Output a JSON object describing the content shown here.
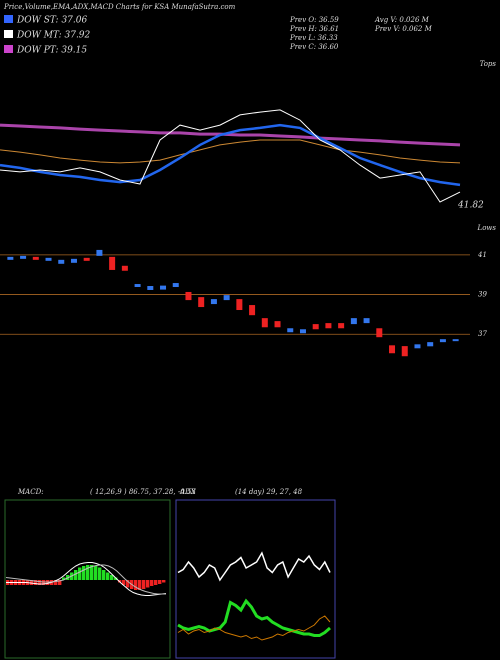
{
  "header": {
    "title": "Price,Volume,EMA,ADX,MACD Charts for KSA MunafaSutra.com"
  },
  "legend": [
    {
      "label": "DOW ST: 37.06",
      "color": "#3366ff"
    },
    {
      "label": "DOW MT: 37.92",
      "color": "#ffffff"
    },
    {
      "label": "DOW PT: 39.15",
      "color": "#cc44cc"
    }
  ],
  "stats": [
    "Prev  O: 36.59",
    "Prev  H: 36.61",
    "Prev  L: 36.33",
    "Prev  C: 36.60",
    "Avg V: 0.026  M",
    "Prev  V: 0.062  M"
  ],
  "chart_data": [
    {
      "type": "line",
      "top_label": "Tops",
      "bottom_label": "Lows",
      "last_label": "41.82",
      "ylim": [
        41,
        46
      ],
      "series": [
        {
          "color": "#aa44aa",
          "width": 3,
          "values": [
            43.9,
            43.87,
            43.84,
            43.81,
            43.77,
            43.74,
            43.71,
            43.68,
            43.65,
            43.65,
            43.61,
            43.61,
            43.58,
            43.58,
            43.55,
            43.52,
            43.48,
            43.45,
            43.42,
            43.39,
            43.35,
            43.32,
            43.29,
            43.26
          ]
        },
        {
          "color": "#cc8833",
          "width": 1,
          "values": [
            43.1,
            43.03,
            42.94,
            42.84,
            42.77,
            42.71,
            42.68,
            42.71,
            42.77,
            42.94,
            43.1,
            43.26,
            43.35,
            43.42,
            43.42,
            43.42,
            43.26,
            43.1,
            43.03,
            42.94,
            42.84,
            42.77,
            42.71,
            42.68
          ]
        },
        {
          "color": "#2266ee",
          "width": 2.5,
          "values": [
            42.61,
            42.52,
            42.39,
            42.29,
            42.23,
            42.13,
            42.06,
            42.13,
            42.45,
            42.84,
            43.26,
            43.58,
            43.74,
            43.81,
            43.9,
            43.81,
            43.48,
            43.16,
            42.84,
            42.61,
            42.39,
            42.19,
            42.06,
            41.97
          ]
        },
        {
          "color": "#ffffff",
          "width": 1,
          "values": [
            42.45,
            42.39,
            42.45,
            42.39,
            42.52,
            42.39,
            42.13,
            42.0,
            43.42,
            43.9,
            43.74,
            43.9,
            44.23,
            44.32,
            44.39,
            44.06,
            43.42,
            43.1,
            42.61,
            42.19,
            42.29,
            42.39,
            41.42,
            41.74
          ]
        }
      ]
    },
    {
      "type": "candlestick",
      "up_color": "#3377ee",
      "down_color": "#ee2222",
      "grid": true,
      "ylim": [
        35.7,
        41.75
      ],
      "yticks": [
        37,
        39,
        41
      ],
      "open": [
        40.75,
        40.8,
        40.9,
        40.7,
        40.55,
        40.6,
        40.85,
        40.95,
        40.9,
        40.45,
        39.38,
        39.23,
        39.25,
        39.38,
        39.13,
        38.87,
        38.52,
        38.72,
        38.77,
        38.47,
        37.81,
        37.66,
        37.1,
        37.05,
        37.51,
        37.56,
        37.56,
        37.51,
        37.56,
        37.3,
        36.44,
        36.4,
        36.29,
        36.39,
        36.6,
        36.65
      ],
      "close": [
        40.9,
        40.95,
        40.75,
        40.85,
        40.75,
        40.8,
        40.7,
        41.25,
        40.24,
        40.2,
        39.53,
        39.43,
        39.45,
        39.58,
        38.72,
        38.37,
        38.77,
        38.97,
        38.22,
        37.96,
        37.35,
        37.35,
        37.3,
        37.25,
        37.25,
        37.3,
        37.3,
        37.81,
        37.81,
        36.85,
        36.04,
        35.89,
        36.49,
        36.6,
        36.75,
        36.75
      ]
    },
    {
      "type": "macd",
      "title": "MACD:",
      "params": "( 12,26,9 ) 86.75,  37.28,  -0.53",
      "ylim": [
        -1.5,
        1.5
      ],
      "histogram": [
        -0.1,
        -0.1,
        -0.1,
        -0.1,
        -0.1,
        -0.1,
        -0.1,
        -0.1,
        -0.1,
        -0.1,
        -0.1,
        -0.1,
        -0.1,
        -0.1,
        0.05,
        0.1,
        0.15,
        0.2,
        0.25,
        0.28,
        0.3,
        0.3,
        0.28,
        0.25,
        0.2,
        0.15,
        0.1,
        0.05,
        -0.05,
        -0.1,
        -0.15,
        -0.18,
        -0.2,
        -0.2,
        -0.18,
        -0.15,
        -0.12,
        -0.1,
        -0.08,
        -0.05
      ],
      "up_color": "#22dd22",
      "down_color": "#ee2222",
      "series": [
        {
          "color": "#ffffff",
          "values": [
            -0.05,
            -0.05,
            -0.05,
            -0.05,
            -0.05,
            -0.05,
            -0.06,
            -0.07,
            -0.08,
            -0.08,
            -0.07,
            -0.05,
            -0.02,
            0.02,
            0.08,
            0.15,
            0.22,
            0.28,
            0.32,
            0.34,
            0.35,
            0.35,
            0.33,
            0.3,
            0.25,
            0.18,
            0.1,
            0.02,
            -0.06,
            -0.13,
            -0.2,
            -0.25,
            -0.28,
            -0.3,
            -0.31,
            -0.31,
            -0.3,
            -0.29,
            -0.28,
            -0.27
          ]
        },
        {
          "color": "#bbbbbb",
          "values": [
            0.05,
            0.04,
            0.03,
            0.02,
            0.01,
            0,
            -0.01,
            -0.02,
            -0.03,
            -0.04,
            -0.04,
            -0.04,
            -0.03,
            -0.02,
            0.0,
            0.04,
            0.08,
            0.12,
            0.16,
            0.2,
            0.24,
            0.27,
            0.29,
            0.3,
            0.3,
            0.28,
            0.24,
            0.18,
            0.1,
            0.02,
            -0.05,
            -0.11,
            -0.16,
            -0.2,
            -0.23,
            -0.25,
            -0.27,
            -0.28,
            -0.28,
            -0.28
          ]
        }
      ]
    },
    {
      "type": "line",
      "title": "ADX",
      "params": "(14 day) 29,  27,  48",
      "ylim": [
        0,
        100
      ],
      "series": [
        {
          "color": "#ffffff",
          "width": 1.5,
          "values": [
            55,
            57,
            62,
            58,
            52,
            55,
            60,
            58,
            50,
            55,
            60,
            62,
            65,
            58,
            60,
            62,
            68,
            58,
            55,
            60,
            62,
            52,
            58,
            64,
            62,
            66,
            60,
            57,
            62,
            55
          ]
        },
        {
          "color": "#22dd22",
          "width": 3,
          "values": [
            20,
            18,
            17,
            18,
            19,
            18,
            16,
            17,
            18,
            22,
            35,
            33,
            30,
            36,
            32,
            26,
            24,
            25,
            22,
            20,
            18,
            17,
            16,
            15,
            14,
            14,
            13,
            13,
            15,
            18
          ]
        },
        {
          "color": "#cc7700",
          "width": 1,
          "values": [
            15,
            17,
            14,
            16,
            17,
            15,
            16,
            18,
            17,
            15,
            14,
            13,
            12,
            13,
            11,
            12,
            10,
            11,
            12,
            14,
            13,
            15,
            16,
            17,
            16,
            18,
            20,
            24,
            26,
            22
          ]
        }
      ]
    }
  ]
}
